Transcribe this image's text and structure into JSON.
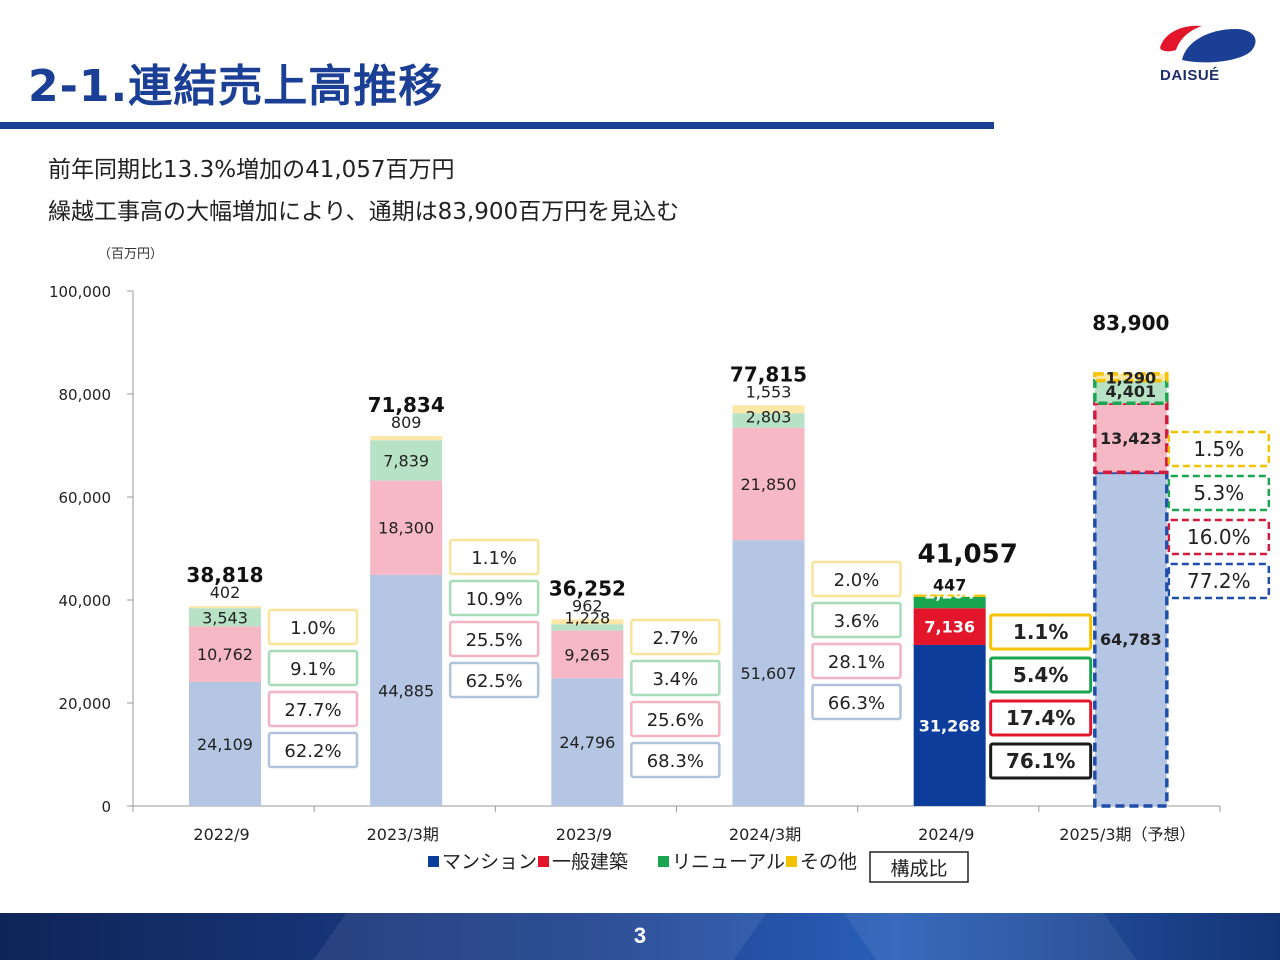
{
  "page": {
    "title": "2-1.連結売上高推移",
    "subtitle_lines": [
      "前年同期比13.3%増加の41,057百万円",
      "繰越工事高の大幅増加により、通期は83,900百万円を見込む"
    ],
    "logo_text": "DAISUÉ",
    "page_number": "3"
  },
  "colors": {
    "title_blue": "#1b3f95",
    "mansion": "#b4c6e4",
    "general": "#f7b8c6",
    "renewal": "#b8e2c6",
    "other": "#fbe7a8",
    "mansion_hl": "#0d3d9a",
    "general_hl": "#e3152b",
    "renewal_hl": "#1aa650",
    "other_hl": "#f5c200",
    "mansion_box": "#aec3dc",
    "general_box": "#f4b3c2",
    "renewal_box": "#a8dcb9",
    "other_box": "#fae39b",
    "forecast_mansion": "#1f4ea8",
    "forecast_general": "#d11a3c",
    "forecast_renewal": "#1aa650",
    "forecast_other": "#f5c200"
  },
  "chart_data": {
    "type": "bar",
    "stacked": true,
    "unit_label": "（百万円）",
    "ylim": [
      0,
      100000
    ],
    "yticks": [
      "0",
      "20,000",
      "40,000",
      "60,000",
      "80,000",
      "100,000"
    ],
    "ytick_values": [
      0,
      20000,
      40000,
      60000,
      80000,
      100000
    ],
    "categories": [
      "2022/9",
      "2023/3期",
      "2023/9",
      "2024/3期",
      "2024/9",
      "2025/3期（予想）"
    ],
    "highlight_index": 4,
    "forecast_index": 5,
    "series": [
      {
        "name": "マンション",
        "values": [
          24109,
          44885,
          24796,
          51607,
          31268,
          64783
        ],
        "labels": [
          "24,109",
          "44,885",
          "24,796",
          "51,607",
          "31,268",
          "64,783"
        ]
      },
      {
        "name": "一般建築",
        "values": [
          10762,
          18300,
          9265,
          21850,
          7136,
          13423
        ],
        "labels": [
          "10,762",
          "18,300",
          "9,265",
          "21,850",
          "7,136",
          "13,423"
        ]
      },
      {
        "name": "リニューアル",
        "values": [
          3543,
          7839,
          1228,
          2803,
          2204,
          4401
        ],
        "labels": [
          "3,543",
          "7,839",
          "1,228",
          "2,803",
          "2,204",
          "4,401"
        ]
      },
      {
        "name": "その他",
        "values": [
          402,
          809,
          962,
          1553,
          447,
          1290
        ],
        "labels": [
          "402",
          "809",
          "962",
          "1,553",
          "447",
          "1,290"
        ]
      }
    ],
    "totals": [
      38818,
      71834,
      36252,
      77815,
      41057,
      83900
    ],
    "total_labels": [
      "38,818",
      "71,834",
      "36,252",
      "77,815",
      "41,057",
      "83,900"
    ],
    "composition": [
      {
        "other": "1.0%",
        "renewal": "9.1%",
        "general": "27.7%",
        "mansion": "62.2%"
      },
      {
        "other": "1.1%",
        "renewal": "10.9%",
        "general": "25.5%",
        "mansion": "62.5%"
      },
      {
        "other": "2.7%",
        "renewal": "3.4%",
        "general": "25.6%",
        "mansion": "68.3%"
      },
      {
        "other": "2.0%",
        "renewal": "3.6%",
        "general": "28.1%",
        "mansion": "66.3%"
      },
      {
        "other": "1.1%",
        "renewal": "5.4%",
        "general": "17.4%",
        "mansion": "76.1%"
      },
      {
        "other": "1.5%",
        "renewal": "5.3%",
        "general": "16.0%",
        "mansion": "77.2%"
      }
    ],
    "legend": {
      "placement": "bottom",
      "items": [
        "マンション",
        "一般建築",
        "リニューアル",
        "その他"
      ],
      "composition_label": "構成比"
    }
  }
}
